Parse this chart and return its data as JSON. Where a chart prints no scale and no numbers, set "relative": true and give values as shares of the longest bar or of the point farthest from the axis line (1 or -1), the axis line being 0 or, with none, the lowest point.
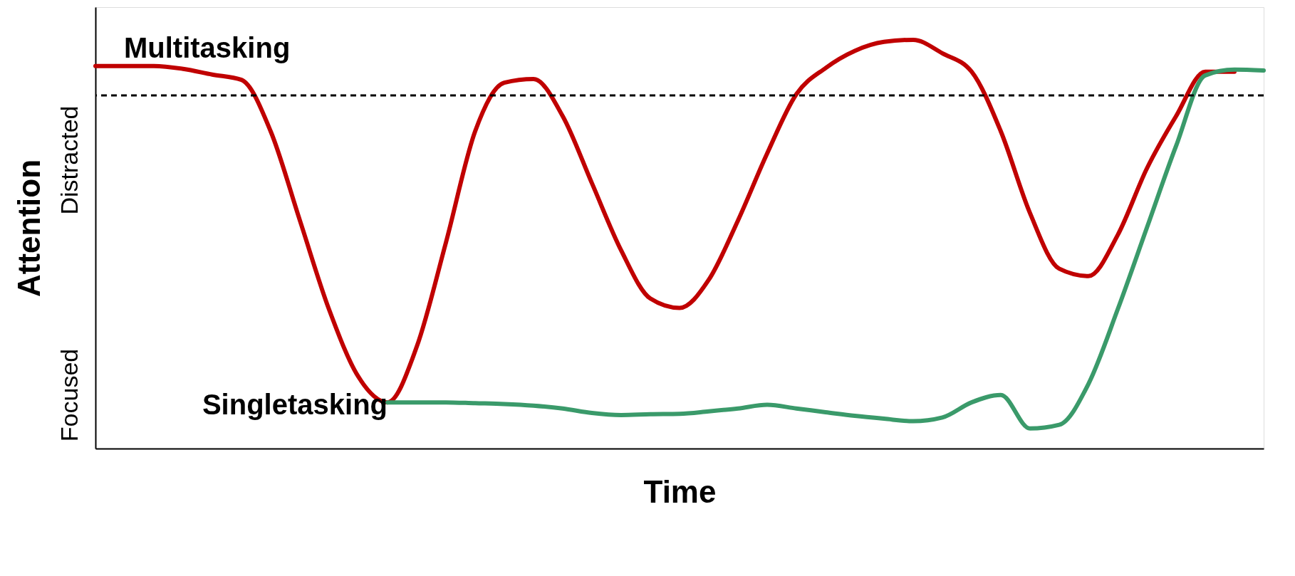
{
  "chart_data": {
    "type": "line",
    "relative": true,
    "xlabel": "Time",
    "ylabel": "Attention",
    "annotations": [
      "Distracted",
      "Focused"
    ],
    "categories": [
      null,
      null,
      null,
      null,
      null,
      null,
      null,
      null,
      null,
      null,
      null,
      null,
      null,
      null,
      null,
      null,
      null,
      null,
      null,
      null,
      null,
      null,
      null,
      null,
      null,
      null,
      null,
      null,
      null,
      null,
      null,
      null,
      null,
      null,
      null,
      null,
      null,
      null,
      null,
      null,
      null
    ],
    "series": [
      {
        "name": "Multitasking",
        "color": "#c00000",
        "values": [
          0.936,
          0.936,
          0.936,
          0.929,
          0.915,
          0.902,
          0.776,
          0.558,
          0.34,
          0.176,
          0.113,
          0.249,
          0.504,
          0.776,
          0.895,
          0.904,
          0.813,
          0.649,
          0.485,
          0.367,
          0.344,
          0.413,
          0.558,
          0.722,
          0.867,
          0.931,
          0.973,
          0.995,
          1,
          0.967,
          0.922,
          0.776,
          0.576,
          0.44,
          0.422,
          0.522,
          0.685,
          0.813,
          0.922,
          0.922,
          null
        ]
      },
      {
        "name": "Singletasking",
        "color": "#3a9a6a",
        "values": [
          null,
          null,
          null,
          null,
          null,
          null,
          null,
          null,
          null,
          null,
          0.113,
          0.113,
          0.113,
          0.111,
          0.109,
          0.105,
          0.098,
          0.087,
          0.082,
          0.084,
          0.085,
          0.091,
          0.098,
          0.107,
          0.098,
          0.089,
          0.08,
          0.073,
          0.067,
          0.076,
          0.113,
          0.131,
          0.049,
          0.058,
          0.158,
          0.34,
          0.54,
          0.74,
          0.913,
          0.927,
          0.925
        ]
      }
    ],
    "ref_lines": [
      {
        "axis": "y",
        "value": 0.864,
        "color": "#000000",
        "line_style": "dashed"
      }
    ],
    "grid": false,
    "marker": "none",
    "line_style": "solid"
  }
}
